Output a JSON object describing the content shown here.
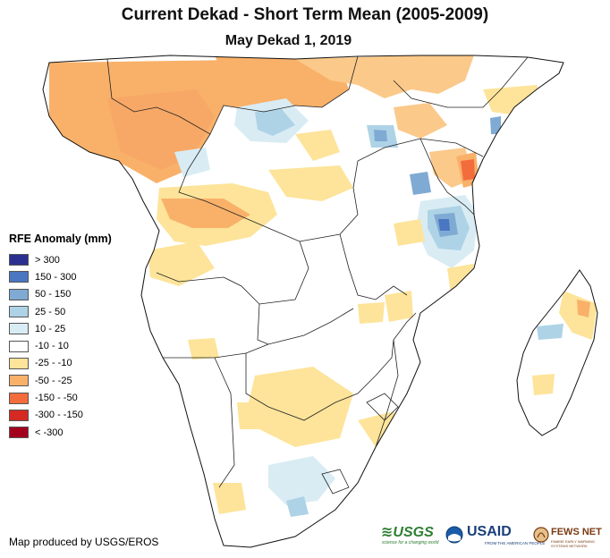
{
  "header": {
    "title": "Current Dekad - Short Term Mean (2005-2009)",
    "subtitle": "May Dekad 1, 2019"
  },
  "legend": {
    "title": "RFE Anomaly (mm)",
    "items": [
      {
        "label": "> 300",
        "color": "#2b2f8f"
      },
      {
        "label": "150 - 300",
        "color": "#4a76c2"
      },
      {
        "label": "50 - 150",
        "color": "#7faad3"
      },
      {
        "label": "25 - 50",
        "color": "#aed3e6"
      },
      {
        "label": "10 - 25",
        "color": "#d9ecf4"
      },
      {
        "label": "-10 - 10",
        "color": "#ffffff"
      },
      {
        "label": "-25 - -10",
        "color": "#fde49a"
      },
      {
        "label": "-50 - -25",
        "color": "#f9b16a"
      },
      {
        "label": "-150 - -50",
        "color": "#f36c3c"
      },
      {
        "label": "-300 - -150",
        "color": "#d42a22"
      },
      {
        "label": "< -300",
        "color": "#a3001e"
      }
    ]
  },
  "footer": {
    "credit": "Map produced by USGS/EROS",
    "logos": {
      "usgs": "≋USGS",
      "usgs_tagline": "science for a changing world",
      "usaid": "USAID",
      "usaid_tagline": "FROM THE AMERICAN PEOPLE",
      "fews": "FEWS NET",
      "fews_tagline": "FAMINE EARLY WARNING SYSTEMS NETWORK"
    }
  }
}
